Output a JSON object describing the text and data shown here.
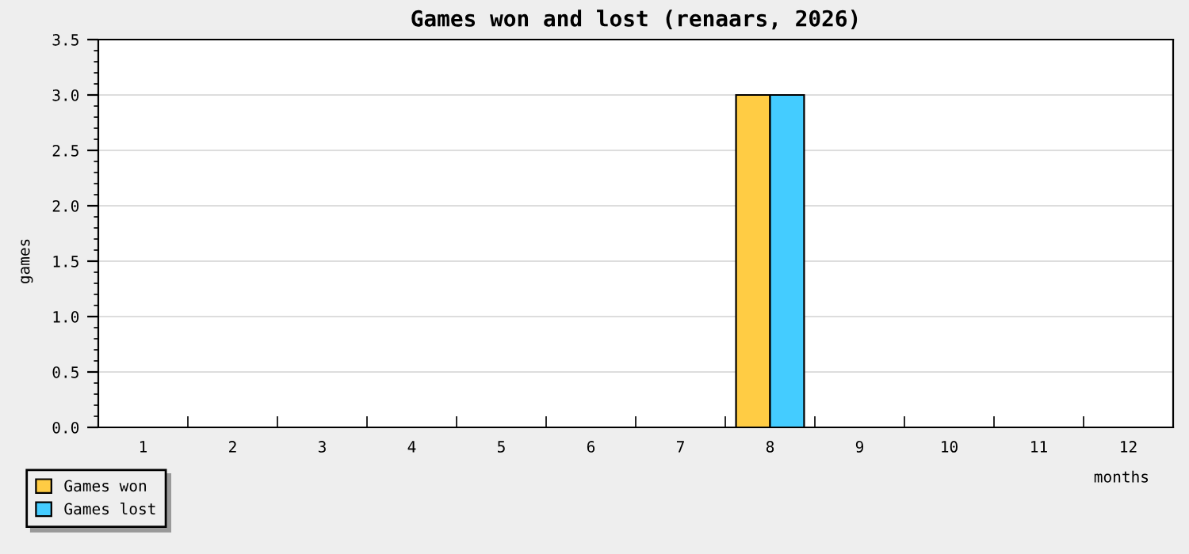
{
  "chart_data": {
    "type": "bar",
    "title": "Games won and lost (renaars, 2026)",
    "xlabel": "months",
    "ylabel": "games",
    "categories": [
      "1",
      "2",
      "3",
      "4",
      "5",
      "6",
      "7",
      "8",
      "9",
      "10",
      "11",
      "12"
    ],
    "series": [
      {
        "name": "Games won",
        "color": "#ffcc44",
        "values": [
          0,
          0,
          0,
          0,
          0,
          0,
          0,
          3,
          0,
          0,
          0,
          0
        ]
      },
      {
        "name": "Games lost",
        "color": "#44ccff",
        "values": [
          0,
          0,
          0,
          0,
          0,
          0,
          0,
          3,
          0,
          0,
          0,
          0
        ]
      }
    ],
    "ylim": [
      0,
      3.5
    ],
    "yticks": [
      {
        "value": 0,
        "label": "0.0"
      },
      {
        "value": 0.5,
        "label": "0.5"
      },
      {
        "value": 1,
        "label": "1.0"
      },
      {
        "value": 1.5,
        "label": "1.5"
      },
      {
        "value": 2,
        "label": "2.0"
      },
      {
        "value": 2.5,
        "label": "2.5"
      },
      {
        "value": 3,
        "label": "3.0"
      },
      3.5
    ],
    "grid": "y",
    "legend": "bottom left"
  }
}
